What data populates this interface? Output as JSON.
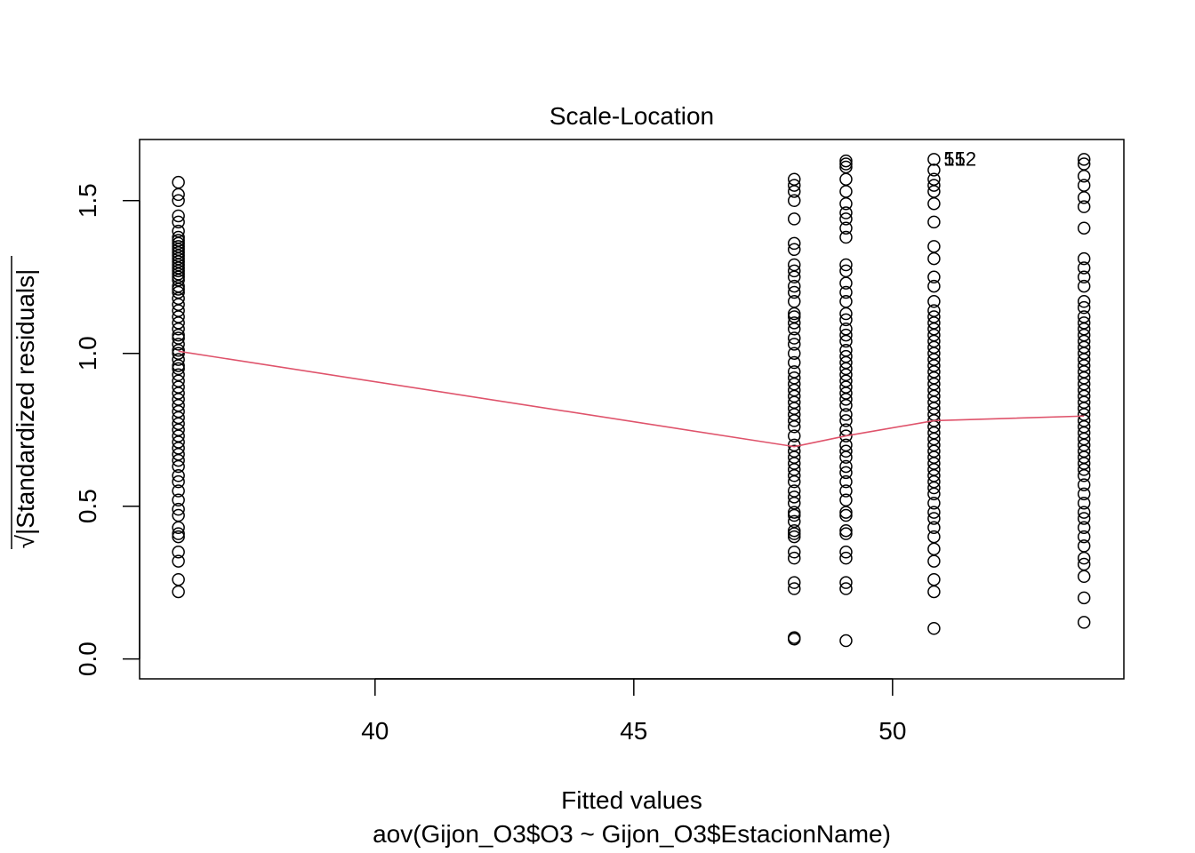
{
  "chart_data": {
    "type": "scatter",
    "title": "Scale-Location",
    "xlabel": "Fitted values",
    "xlabel_sub": "aov(Gijon_O3$O3 ~ Gijon_O3$EstacionName)",
    "ylabel_radical": "√",
    "ylabel": "|Standardized residuals|",
    "xlim": [
      35.45,
      54.47
    ],
    "ylim": [
      -0.065,
      1.7
    ],
    "x_ticks": [
      40,
      45,
      50
    ],
    "y_ticks": [
      0.0,
      0.5,
      1.0,
      1.5
    ],
    "x_tick_labels": [
      "40",
      "45",
      "50"
    ],
    "y_tick_labels": [
      "0.0",
      "0.5",
      "1.0",
      "1.5"
    ],
    "grid": false,
    "point_color": "#000000",
    "smooth_color": "#DF536B",
    "point_labels": [
      {
        "x": 50.8,
        "y": 1.635,
        "text": "152"
      },
      {
        "x": 50.8,
        "y": 1.635,
        "text": "51"
      }
    ],
    "series": [
      {
        "x": 36.2,
        "values": [
          1.56,
          1.52,
          1.5,
          1.45,
          1.43,
          1.4,
          1.38,
          1.37,
          1.36,
          1.35,
          1.34,
          1.33,
          1.32,
          1.31,
          1.3,
          1.29,
          1.28,
          1.27,
          1.26,
          1.25,
          1.24,
          1.22,
          1.21,
          1.2,
          1.18,
          1.16,
          1.14,
          1.12,
          1.1,
          1.08,
          1.06,
          1.05,
          1.03,
          1.01,
          1.0,
          0.98,
          0.96,
          0.95,
          0.93,
          0.91,
          0.89,
          0.87,
          0.85,
          0.83,
          0.81,
          0.79,
          0.77,
          0.75,
          0.73,
          0.71,
          0.69,
          0.67,
          0.65,
          0.63,
          0.6,
          0.58,
          0.55,
          0.52,
          0.49,
          0.47,
          0.43,
          0.41,
          0.4,
          0.35,
          0.32,
          0.26,
          0.22
        ]
      },
      {
        "x": 48.1,
        "values": [
          1.57,
          1.55,
          1.53,
          1.5,
          1.44,
          1.36,
          1.34,
          1.29,
          1.27,
          1.25,
          1.22,
          1.2,
          1.17,
          1.13,
          1.12,
          1.1,
          1.08,
          1.05,
          1.03,
          1.0,
          0.97,
          0.94,
          0.92,
          0.9,
          0.88,
          0.86,
          0.84,
          0.82,
          0.8,
          0.78,
          0.76,
          0.73,
          0.7,
          0.68,
          0.66,
          0.64,
          0.62,
          0.6,
          0.58,
          0.55,
          0.53,
          0.51,
          0.48,
          0.47,
          0.45,
          0.42,
          0.41,
          0.4,
          0.35,
          0.33,
          0.25,
          0.23,
          0.07,
          0.065
        ]
      },
      {
        "x": 49.1,
        "values": [
          1.63,
          1.62,
          1.61,
          1.57,
          1.53,
          1.49,
          1.46,
          1.44,
          1.41,
          1.38,
          1.29,
          1.27,
          1.23,
          1.2,
          1.17,
          1.13,
          1.11,
          1.08,
          1.06,
          1.04,
          1.01,
          0.99,
          0.97,
          0.95,
          0.93,
          0.91,
          0.89,
          0.87,
          0.85,
          0.83,
          0.8,
          0.78,
          0.75,
          0.73,
          0.7,
          0.68,
          0.66,
          0.63,
          0.61,
          0.58,
          0.55,
          0.52,
          0.48,
          0.47,
          0.42,
          0.41,
          0.35,
          0.33,
          0.25,
          0.23,
          0.06
        ]
      },
      {
        "x": 50.8,
        "values": [
          1.635,
          1.6,
          1.57,
          1.55,
          1.53,
          1.49,
          1.43,
          1.35,
          1.31,
          1.25,
          1.22,
          1.17,
          1.14,
          1.12,
          1.1,
          1.08,
          1.06,
          1.04,
          1.02,
          1.0,
          0.98,
          0.96,
          0.94,
          0.92,
          0.9,
          0.88,
          0.86,
          0.84,
          0.82,
          0.8,
          0.78,
          0.76,
          0.74,
          0.72,
          0.7,
          0.68,
          0.66,
          0.64,
          0.62,
          0.6,
          0.58,
          0.56,
          0.54,
          0.51,
          0.48,
          0.46,
          0.43,
          0.4,
          0.36,
          0.32,
          0.26,
          0.22,
          0.1
        ]
      },
      {
        "x": 53.7,
        "values": [
          1.635,
          1.62,
          1.58,
          1.55,
          1.51,
          1.48,
          1.41,
          1.31,
          1.28,
          1.25,
          1.22,
          1.17,
          1.15,
          1.12,
          1.1,
          1.08,
          1.06,
          1.04,
          1.02,
          1.0,
          0.98,
          0.96,
          0.94,
          0.92,
          0.9,
          0.88,
          0.86,
          0.84,
          0.82,
          0.8,
          0.78,
          0.76,
          0.74,
          0.72,
          0.7,
          0.68,
          0.66,
          0.64,
          0.62,
          0.6,
          0.57,
          0.54,
          0.51,
          0.48,
          0.46,
          0.43,
          0.4,
          0.37,
          0.33,
          0.31,
          0.27,
          0.2,
          0.12
        ]
      }
    ],
    "smooth_line": {
      "x": [
        36.2,
        48.1,
        49.1,
        50.8,
        53.7
      ],
      "y": [
        1.007,
        0.695,
        0.73,
        0.78,
        0.795
      ]
    }
  }
}
